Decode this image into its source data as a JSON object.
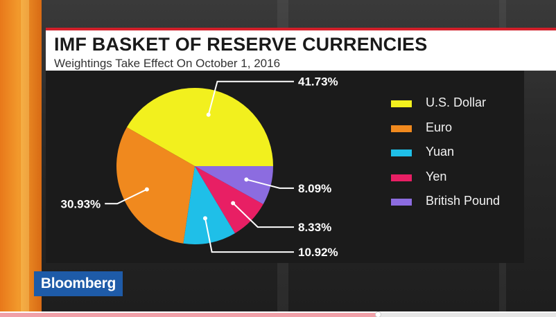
{
  "header": {
    "title": "IMF BASKET OF RESERVE CURRENCIES",
    "subtitle": "Weightings Take Effect On October 1, 2016"
  },
  "logo": {
    "text": "Bloomberg"
  },
  "colors": {
    "header_rule": "#d11f2a",
    "logo_bg": "#1e5ba8",
    "dollar": "#f2f01e",
    "euro": "#f0891e",
    "yuan": "#1fbfe8",
    "yen": "#e81f64",
    "pound": "#8c6ce0"
  },
  "playback": {
    "progress": 0.68
  },
  "chart_data": {
    "type": "pie",
    "title": "IMF BASKET OF RESERVE CURRENCIES",
    "subtitle": "Weightings Take Effect On October 1, 2016",
    "legend_position": "right",
    "slices": [
      {
        "name": "U.S. Dollar",
        "value": 41.73,
        "label": "41.73%",
        "color": "#f2f01e"
      },
      {
        "name": "Euro",
        "value": 30.93,
        "label": "30.93%",
        "color": "#f0891e"
      },
      {
        "name": "Yuan",
        "value": 10.92,
        "label": "10.92%",
        "color": "#1fbfe8"
      },
      {
        "name": "Yen",
        "value": 8.33,
        "label": "8.33%",
        "color": "#e81f64"
      },
      {
        "name": "British Pound",
        "value": 8.09,
        "label": "8.09%",
        "color": "#8c6ce0"
      }
    ]
  }
}
